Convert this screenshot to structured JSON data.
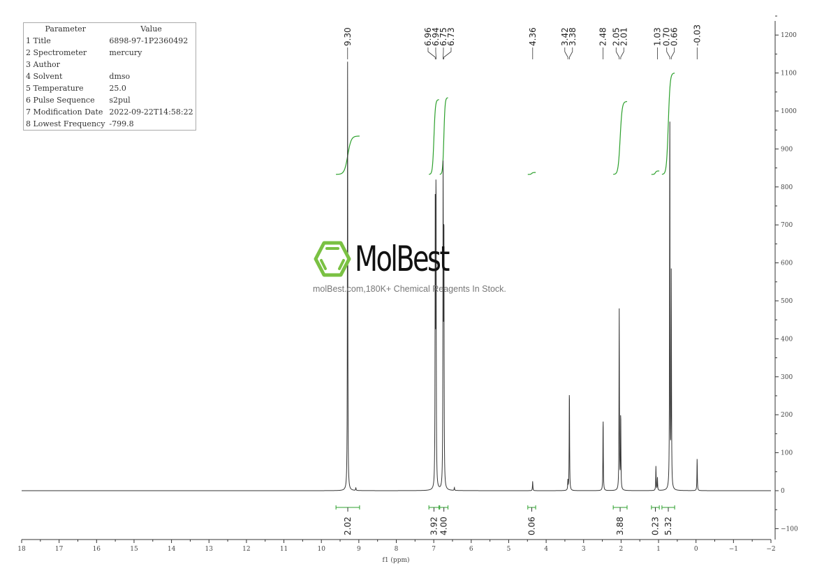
{
  "parameters": {
    "header": [
      "Parameter",
      "Value"
    ],
    "rows": [
      [
        "1 Title",
        "6898-97-1P2360492"
      ],
      [
        "2 Spectrometer",
        "mercury"
      ],
      [
        "3 Author",
        ""
      ],
      [
        "4 Solvent",
        "dmso"
      ],
      [
        "5 Temperature",
        "25.0"
      ],
      [
        "6 Pulse Sequence",
        "s2pul"
      ],
      [
        "7 Modification Date",
        "2022-09-22T14:58:22"
      ],
      [
        "8 Lowest Frequency",
        "-799.8"
      ]
    ]
  },
  "watermark": {
    "brand": "MolBest",
    "tagline": "molBest.com,180K+ Chemical Reagents In Stock.",
    "logo_color": "#7ac143"
  },
  "chart_data": {
    "type": "line",
    "xlabel": "f1 (ppm)",
    "xlim": [
      18,
      -2
    ],
    "ylim": [
      -150,
      1230
    ],
    "x_ticks": [
      18,
      17,
      16,
      15,
      14,
      13,
      12,
      11,
      10,
      9,
      8,
      7,
      6,
      5,
      4,
      3,
      2,
      1,
      0,
      -1,
      -2
    ],
    "y_ticks": [
      -100,
      0,
      100,
      200,
      300,
      400,
      500,
      600,
      700,
      800,
      900,
      1000,
      1100,
      1200
    ],
    "line_color": "#333333",
    "integral_color": "#2ca02c",
    "peaks": [
      {
        "ppm": 9.3,
        "height": 1130
      },
      {
        "ppm": 9.08,
        "height": 8
      },
      {
        "ppm": 6.96,
        "height": 730
      },
      {
        "ppm": 6.94,
        "height": 845
      },
      {
        "ppm": 6.75,
        "height": 845
      },
      {
        "ppm": 6.73,
        "height": 720
      },
      {
        "ppm": 6.45,
        "height": 8
      },
      {
        "ppm": 4.36,
        "height": 25
      },
      {
        "ppm": 3.42,
        "height": 25
      },
      {
        "ppm": 3.38,
        "height": 282
      },
      {
        "ppm": 2.48,
        "height": 200
      },
      {
        "ppm": 2.05,
        "height": 480
      },
      {
        "ppm": 2.01,
        "height": 210
      },
      {
        "ppm": 1.07,
        "height": 65
      },
      {
        "ppm": 1.03,
        "height": 35
      },
      {
        "ppm": 0.7,
        "height": 1060
      },
      {
        "ppm": 0.66,
        "height": 570
      },
      {
        "ppm": -0.03,
        "height": 86
      }
    ],
    "peak_labels": [
      "9.30",
      "6.96",
      "6.94",
      "6.75",
      "6.73",
      "4.36",
      "3.42",
      "3.38",
      "2.48",
      "2.05",
      "2.01",
      "1.03",
      "0.70",
      "0.66",
      "-0.03"
    ],
    "integrals": [
      {
        "from": 9.61,
        "to": 8.98,
        "value": "2.02",
        "curve_start": 833,
        "curve_end": 934
      },
      {
        "from": 7.13,
        "to": 6.86,
        "value": "3.92",
        "curve_start": 833,
        "curve_end": 1030
      },
      {
        "from": 6.84,
        "to": 6.62,
        "value": "4.00",
        "curve_start": 833,
        "curve_end": 1035
      },
      {
        "from": 4.49,
        "to": 4.28,
        "value": "0.06",
        "curve_start": 833,
        "curve_end": 838
      },
      {
        "from": 2.21,
        "to": 1.84,
        "value": "3.88",
        "curve_start": 833,
        "curve_end": 1025
      },
      {
        "from": 1.19,
        "to": 0.98,
        "value": "0.23",
        "curve_start": 833,
        "curve_end": 842
      },
      {
        "from": 0.91,
        "to": 0.57,
        "value": "5.32",
        "curve_start": 833,
        "curve_end": 1100
      }
    ]
  }
}
